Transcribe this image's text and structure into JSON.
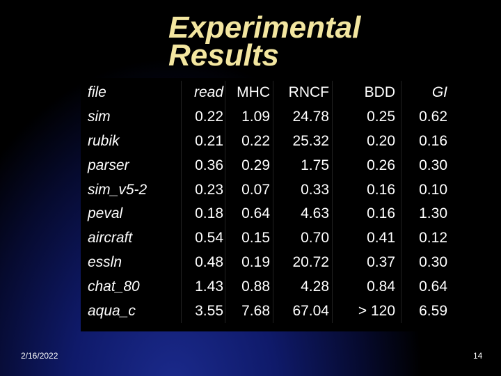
{
  "title": {
    "line1": "Experimental",
    "line2": "Results"
  },
  "table": {
    "headers": {
      "file": "file",
      "read": "read",
      "mhc": "MHC",
      "rncf": "RNCF",
      "bdd": "BDD",
      "gi": "GI"
    },
    "rows": [
      {
        "file": "sim",
        "read": "0.22",
        "mhc": "1.09",
        "rncf": "24.78",
        "bdd": "0.25",
        "gi": "0.62"
      },
      {
        "file": "rubik",
        "read": "0.21",
        "mhc": "0.22",
        "rncf": "25.32",
        "bdd": "0.20",
        "gi": "0.16"
      },
      {
        "file": "parser",
        "read": "0.36",
        "mhc": "0.29",
        "rncf": "1.75",
        "bdd": "0.26",
        "gi": "0.30"
      },
      {
        "file": "sim_v5-2",
        "read": "0.23",
        "mhc": "0.07",
        "rncf": "0.33",
        "bdd": "0.16",
        "gi": "0.10"
      },
      {
        "file": "peval",
        "read": "0.18",
        "mhc": "0.64",
        "rncf": "4.63",
        "bdd": "0.16",
        "gi": "1.30"
      },
      {
        "file": "aircraft",
        "read": "0.54",
        "mhc": "0.15",
        "rncf": "0.70",
        "bdd": "0.41",
        "gi": "0.12"
      },
      {
        "file": "essln",
        "read": "0.48",
        "mhc": "0.19",
        "rncf": "20.72",
        "bdd": "0.37",
        "gi": "0.30"
      },
      {
        "file": "chat_80",
        "read": "1.43",
        "mhc": "0.88",
        "rncf": "4.28",
        "bdd": "0.84",
        "gi": "0.64"
      },
      {
        "file": "aqua_c",
        "read": "3.55",
        "mhc": "7.68",
        "rncf": "67.04",
        "bdd": "> 120",
        "gi": "6.59"
      }
    ]
  },
  "footer": {
    "date": "2/16/2022",
    "page": "14"
  },
  "colors": {
    "title": "#f3e6a0",
    "text": "#ffffff",
    "background": "#000000",
    "accent_glow": "#1b2a8c"
  }
}
